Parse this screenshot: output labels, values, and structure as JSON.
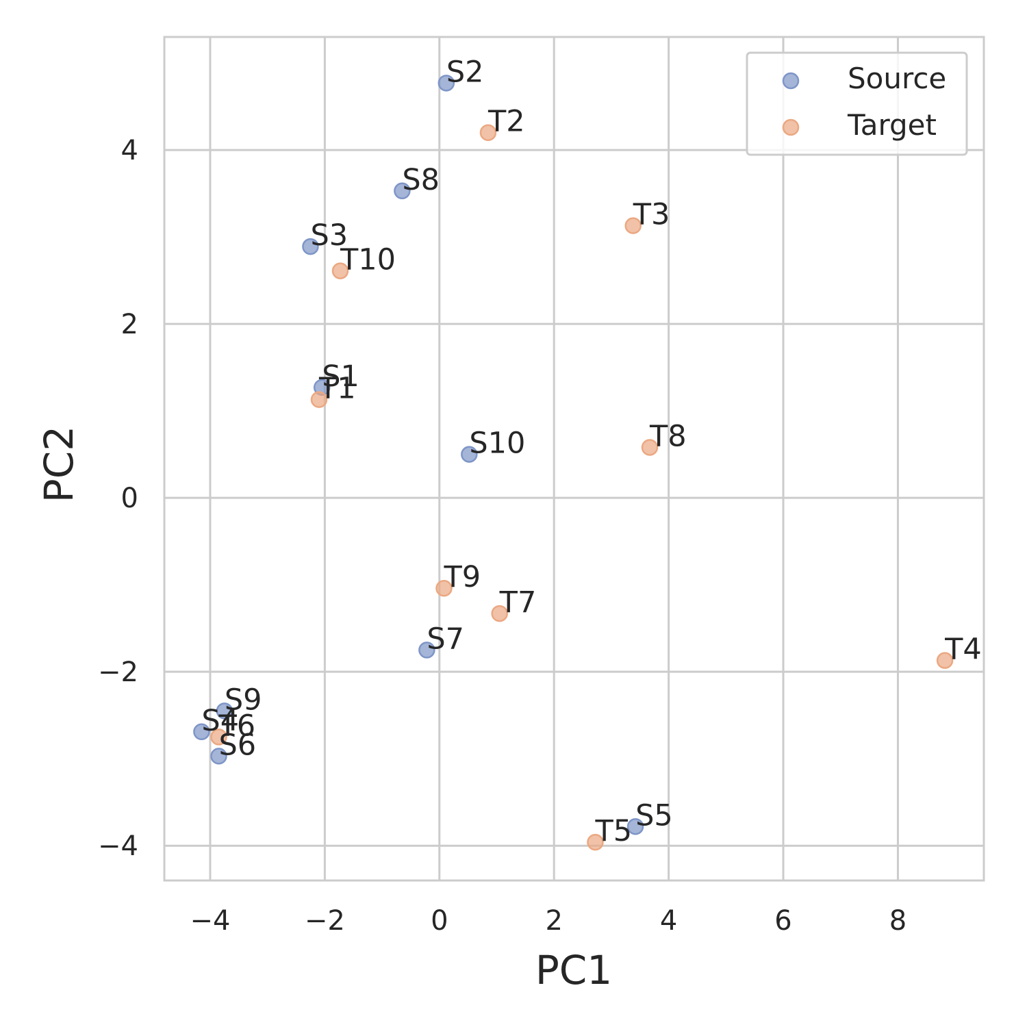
{
  "chart_data": {
    "type": "scatter",
    "title": "",
    "xlabel": "PC1",
    "ylabel": "PC2",
    "xlim": [
      -4.8,
      9.5
    ],
    "ylim": [
      -4.4,
      5.3
    ],
    "xticks": [
      -4,
      -2,
      0,
      2,
      4,
      6,
      8
    ],
    "yticks": [
      -4,
      -2,
      0,
      2,
      4
    ],
    "xtick_labels": [
      "−4",
      "−2",
      "0",
      "2",
      "4",
      "6",
      "8"
    ],
    "ytick_labels": [
      "−4",
      "−2",
      "0",
      "2",
      "4"
    ],
    "grid": true,
    "legend_position": "top-right",
    "series": [
      {
        "name": "Source",
        "color": "#7e95c7",
        "points": [
          {
            "label": "S1",
            "x": -2.05,
            "y": 1.27
          },
          {
            "label": "S2",
            "x": 0.12,
            "y": 4.77
          },
          {
            "label": "S3",
            "x": -2.25,
            "y": 2.89
          },
          {
            "label": "S4",
            "x": -4.15,
            "y": -2.69
          },
          {
            "label": "S5",
            "x": 3.42,
            "y": -3.78
          },
          {
            "label": "S6",
            "x": -3.85,
            "y": -2.97
          },
          {
            "label": "S7",
            "x": -0.22,
            "y": -1.75
          },
          {
            "label": "S8",
            "x": -0.65,
            "y": 3.53
          },
          {
            "label": "S9",
            "x": -3.75,
            "y": -2.45
          },
          {
            "label": "S10",
            "x": 0.52,
            "y": 0.5
          }
        ]
      },
      {
        "name": "Target",
        "color": "#eba882",
        "points": [
          {
            "label": "T1",
            "x": -2.1,
            "y": 1.13
          },
          {
            "label": "T2",
            "x": 0.85,
            "y": 4.2
          },
          {
            "label": "T3",
            "x": 3.38,
            "y": 3.13
          },
          {
            "label": "T4",
            "x": 8.82,
            "y": -1.87
          },
          {
            "label": "T5",
            "x": 2.72,
            "y": -3.96
          },
          {
            "label": "T6",
            "x": -3.85,
            "y": -2.75
          },
          {
            "label": "T7",
            "x": 1.05,
            "y": -1.33
          },
          {
            "label": "T8",
            "x": 3.67,
            "y": 0.58
          },
          {
            "label": "T9",
            "x": 0.08,
            "y": -1.04
          },
          {
            "label": "T10",
            "x": -1.73,
            "y": 2.61
          }
        ]
      }
    ]
  }
}
